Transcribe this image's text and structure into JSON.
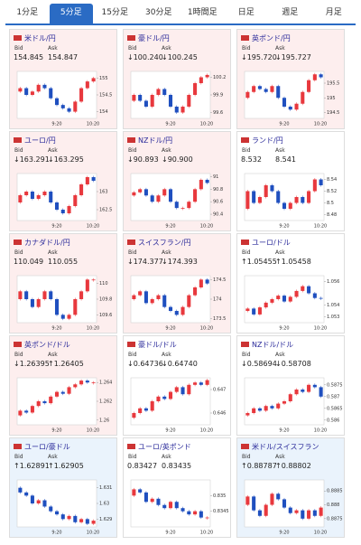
{
  "tabs": [
    "1分足",
    "5分足",
    "15分足",
    "30分足",
    "1時間足",
    "日足",
    "週足",
    "月足"
  ],
  "active_tab": 1,
  "bid_label": "Bid",
  "ask_label": "Ask",
  "up_color": "#e8383d",
  "down_color": "#1f4fbf",
  "cards": [
    {
      "name": "米ドル/円",
      "bid": "154.845",
      "ask": "154.847",
      "bg": "#fdeeee",
      "ylim": [
        153.8,
        155.2
      ],
      "yticks": [
        155,
        154.5,
        154
      ],
      "xticks": [
        "9:20",
        "10:20"
      ],
      "values": [
        154.6,
        154.7,
        154.5,
        154.6,
        154.8,
        154.7,
        154.4,
        154.2,
        154.1,
        154.0,
        154.3,
        154.7,
        154.9,
        155.0
      ]
    },
    {
      "name": "豪ドル/円",
      "bid": "↓100.240",
      "ask": "↓100.245",
      "bg": "#fdeeee",
      "ylim": [
        99.5,
        100.3
      ],
      "yticks": [
        100.2,
        99.9,
        99.6
      ],
      "xticks": [
        "9:20",
        "10:20"
      ],
      "values": [
        99.8,
        99.9,
        99.8,
        99.7,
        99.9,
        100.0,
        99.9,
        99.7,
        99.6,
        99.7,
        99.9,
        100.1,
        100.2,
        100.24
      ]
    },
    {
      "name": "英ポンド/円",
      "bid": "↓195.720",
      "ask": "↓195.727",
      "bg": "#fdeeee",
      "ylim": [
        194.3,
        195.9
      ],
      "yticks": [
        195.5,
        195,
        194.5
      ],
      "xticks": [
        "9:20",
        "10:20"
      ],
      "values": [
        195.0,
        195.2,
        195.4,
        195.3,
        195.2,
        195.4,
        195.0,
        194.7,
        194.6,
        194.8,
        195.2,
        195.6,
        195.8,
        195.7
      ]
    },
    {
      "name": "ユーロ/円",
      "bid": "↓163.291",
      "ask": "↓163.295",
      "bg": "#fdeeee",
      "ylim": [
        162.2,
        163.5
      ],
      "yticks": [
        163,
        162.5
      ],
      "xticks": [
        "9:20",
        "10:20"
      ],
      "values": [
        162.7,
        162.9,
        163.0,
        162.8,
        162.9,
        163.0,
        162.7,
        162.5,
        162.4,
        162.6,
        162.9,
        163.2,
        163.4,
        163.3
      ]
    },
    {
      "name": "NZドル/円",
      "bid": "↓90.893",
      "ask": "↓90.900",
      "bg": "#fdeeee",
      "ylim": [
        90.3,
        91.05
      ],
      "yticks": [
        91,
        90.8,
        90.6,
        90.4
      ],
      "xticks": [
        "9:20",
        "10:20"
      ],
      "values": [
        90.7,
        90.75,
        90.8,
        90.7,
        90.6,
        90.7,
        90.8,
        90.6,
        90.5,
        90.5,
        90.6,
        90.8,
        90.95,
        90.9
      ]
    },
    {
      "name": "ランド/円",
      "bid": "8.532",
      "ask": "8.541",
      "bg": "#ffffff",
      "ylim": [
        8.47,
        8.55
      ],
      "yticks": [
        8.54,
        8.52,
        8.5,
        8.48
      ],
      "xticks": [
        "9:20",
        "10:20"
      ],
      "values": [
        8.49,
        8.52,
        8.5,
        8.51,
        8.53,
        8.52,
        8.5,
        8.49,
        8.5,
        8.51,
        8.5,
        8.52,
        8.54,
        8.53
      ]
    },
    {
      "name": "カナダドル/円",
      "bid": "110.049",
      "ask": "110.055",
      "bg": "#fdeeee",
      "ylim": [
        109.5,
        110.1
      ],
      "yticks": [
        110,
        109.8,
        109.6
      ],
      "xticks": [
        "9:20",
        "10:20"
      ],
      "values": [
        109.8,
        109.9,
        109.8,
        109.7,
        109.8,
        109.9,
        109.8,
        109.6,
        109.55,
        109.6,
        109.8,
        109.9,
        110.05,
        110.05
      ]
    },
    {
      "name": "スイスフラン/円",
      "bid": "↓174.377",
      "ask": "↓174.393",
      "bg": "#fdeeee",
      "ylim": [
        173.4,
        174.6
      ],
      "yticks": [
        174.5,
        174,
        173.5
      ],
      "xticks": [
        "9:20",
        "10:20"
      ],
      "values": [
        174.0,
        174.1,
        174.2,
        173.9,
        174.0,
        174.1,
        173.8,
        173.7,
        173.6,
        173.8,
        174.1,
        174.3,
        174.5,
        174.4
      ]
    },
    {
      "name": "ユーロ/ドル",
      "bid": "↑1.05455",
      "ask": "↑1.05458",
      "bg": "#ffffff",
      "ylim": [
        1.0525,
        1.0565
      ],
      "yticks": [
        1.056,
        1.054,
        1.053
      ],
      "xticks": [
        "9:20",
        "10:20"
      ],
      "values": [
        1.0535,
        1.0537,
        1.0532,
        1.0538,
        1.0542,
        1.0545,
        1.0548,
        1.0543,
        1.0547,
        1.0552,
        1.0556,
        1.055,
        1.0546,
        1.05455
      ]
    },
    {
      "name": "英ポンド/ドル",
      "bid": "↓1.26395",
      "ask": "↑1.26405",
      "bg": "#fdeeee",
      "ylim": [
        1.2595,
        1.2645
      ],
      "yticks": [
        1.264,
        1.262,
        1.26
      ],
      "xticks": [
        "9:20",
        "10:20"
      ],
      "values": [
        1.2605,
        1.261,
        1.2608,
        1.2615,
        1.262,
        1.2618,
        1.2625,
        1.263,
        1.2628,
        1.2635,
        1.2638,
        1.2642,
        1.264,
        1.264
      ]
    },
    {
      "name": "豪ドル/ドル",
      "bid": "↓0.64736",
      "ask": "↓0.64740",
      "bg": "#ffffff",
      "ylim": [
        0.6455,
        0.6475
      ],
      "yticks": [
        0.647,
        0.646
      ],
      "xticks": [
        "9:20",
        "10:20"
      ],
      "values": [
        0.6458,
        0.646,
        0.6462,
        0.6461,
        0.6465,
        0.6467,
        0.6466,
        0.6469,
        0.6471,
        0.6468,
        0.6472,
        0.6473,
        0.6472,
        0.6474
      ]
    },
    {
      "name": "NZドル/ドル",
      "bid": "↓0.58694",
      "ask": "↓0.58708",
      "bg": "#ffffff",
      "ylim": [
        0.5858,
        0.5878
      ],
      "yticks": [
        0.5875,
        0.587,
        0.5865,
        0.586
      ],
      "xticks": [
        "9:20",
        "10:20"
      ],
      "values": [
        0.5862,
        0.5863,
        0.5865,
        0.5864,
        0.5866,
        0.5865,
        0.5867,
        0.5868,
        0.5871,
        0.5873,
        0.5872,
        0.5875,
        0.5874,
        0.587
      ]
    },
    {
      "name": "ユーロ/豪ドル",
      "bid": "↑1.62891",
      "ask": "↑1.62905",
      "bg": "#eaf3fc",
      "ylim": [
        1.6285,
        1.6315
      ],
      "yticks": [
        1.631,
        1.63,
        1.629
      ],
      "xticks": [
        "9:20",
        "10:20"
      ],
      "values": [
        1.631,
        1.6307,
        1.6305,
        1.63,
        1.6302,
        1.6298,
        1.6295,
        1.6293,
        1.629,
        1.6292,
        1.6288,
        1.629,
        1.6287,
        1.6289
      ]
    },
    {
      "name": "ユーロ/英ポンド",
      "bid": "0.83427",
      "ask": "0.83435",
      "bg": "#ffffff",
      "ylim": [
        0.834,
        0.8355
      ],
      "yticks": [
        0.835,
        0.8345
      ],
      "xticks": [
        "9:20",
        "10:20"
      ],
      "values": [
        0.835,
        0.8352,
        0.8351,
        0.8348,
        0.8349,
        0.8347,
        0.8346,
        0.8348,
        0.8346,
        0.8345,
        0.8344,
        0.8345,
        0.8343,
        0.8343
      ]
    },
    {
      "name": "米ドル/スイスフラン",
      "bid": "↑0.88787",
      "ask": "↑0.88802",
      "bg": "#eaf3fc",
      "ylim": [
        0.8872,
        0.8889
      ],
      "yticks": [
        0.8885,
        0.888,
        0.8875
      ],
      "xticks": [
        "9:20",
        "10:20"
      ],
      "values": [
        0.888,
        0.8883,
        0.8878,
        0.8876,
        0.888,
        0.8884,
        0.8882,
        0.8879,
        0.8877,
        0.8878,
        0.8875,
        0.8878,
        0.8876,
        0.8879
      ]
    }
  ]
}
